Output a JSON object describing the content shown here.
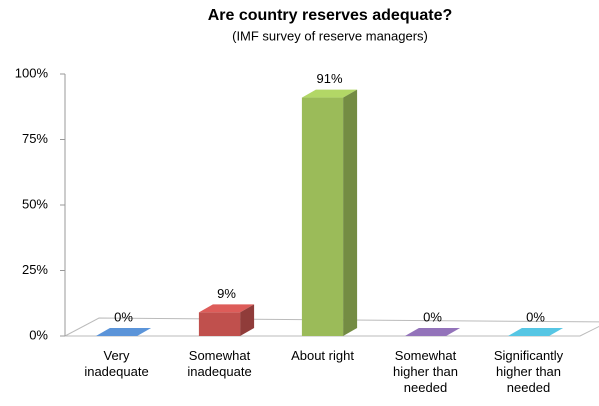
{
  "chart_data": {
    "type": "bar3d",
    "title": "Are country reserves adequate?",
    "subtitle": "(IMF survey of reserve managers)",
    "categories": [
      "Very inadequate",
      "Somewhat inadequate",
      "About right",
      "Somewhat higher than needed",
      "Significantly higher than needed"
    ],
    "values": [
      0,
      9,
      91,
      0,
      0
    ],
    "value_labels": [
      "0%",
      "9%",
      "91%",
      "0%",
      "0%"
    ],
    "colors": [
      "#4f81bd",
      "#c0504d",
      "#9bbb59",
      "#8064a2",
      "#4bacc6"
    ],
    "ylim": [
      0,
      100
    ],
    "yticks": [
      {
        "value": 0,
        "label": "0%"
      },
      {
        "value": 25,
        "label": "25%"
      },
      {
        "value": 50,
        "label": "50%"
      },
      {
        "value": 75,
        "label": "75%"
      },
      {
        "value": 100,
        "label": "100%"
      }
    ],
    "grid": false
  }
}
